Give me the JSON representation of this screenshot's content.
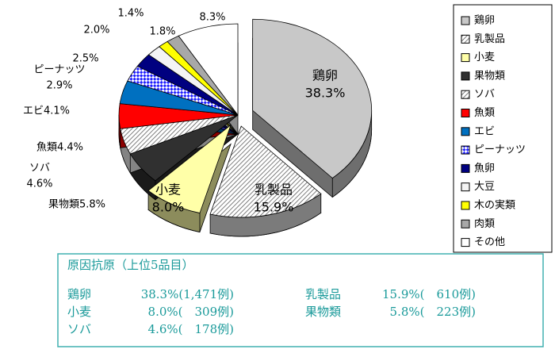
{
  "chart_data": {
    "type": "pie",
    "categories": [
      "鶏卵",
      "乳製品",
      "小麦",
      "果物類",
      "ソバ",
      "魚類",
      "エビ",
      "ピーナッツ",
      "魚卵",
      "大豆",
      "木の実類",
      "肉類",
      "その他"
    ],
    "values": [
      38.3,
      15.9,
      8.0,
      5.8,
      4.6,
      4.4,
      4.1,
      2.9,
      2.5,
      2.0,
      1.4,
      1.8,
      8.3
    ],
    "value_labels": [
      "38.3%",
      "15.9%",
      "8.0%",
      "5.8%",
      "4.6%",
      "4.4%",
      "4.1%",
      "2.9%",
      "2.5%",
      "2.0%",
      "1.4%",
      "1.8%",
      "8.3%"
    ],
    "colors": [
      "#c8c8c8",
      "#e0e0e0",
      "#ffffa8",
      "#303030",
      "#f0f0f0",
      "#ff0000",
      "#0070c0",
      "#4040ff",
      "#000080",
      "#f4f4f4",
      "#ffff00",
      "#a8a8a8",
      "#ffffff"
    ],
    "legend": "right"
  },
  "summary": {
    "title": "原因抗原（上位5品目）",
    "items": [
      {
        "name": "鶏卵",
        "share": "38.3%(1,471例)"
      },
      {
        "name": "乳製品",
        "share": "15.9%(　610例)"
      },
      {
        "name": "小麦",
        "share": "8.0%(　309例)"
      },
      {
        "name": "果物類",
        "share": "5.8%(　223例)"
      },
      {
        "name": "ソバ",
        "share": "4.6%(　178例)"
      }
    ]
  }
}
